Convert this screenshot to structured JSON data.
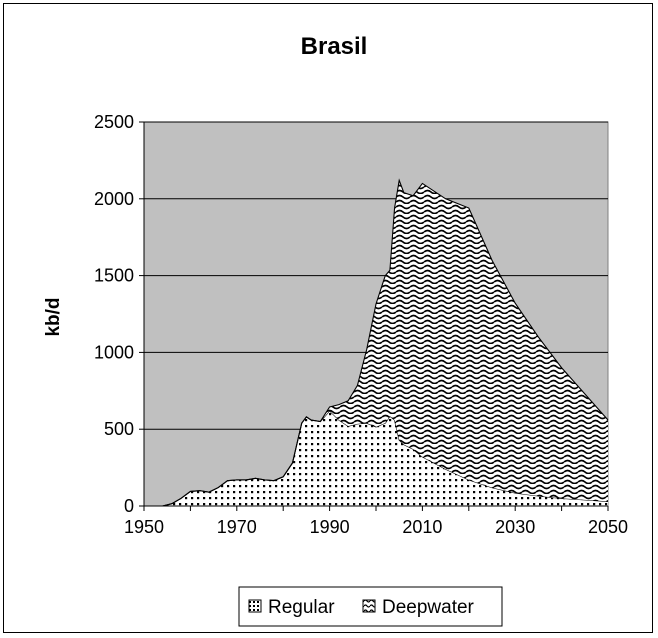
{
  "chart_data": {
    "type": "area",
    "stacked": true,
    "title": "Brasil",
    "xlabel": "",
    "ylabel": "kb/d",
    "xlim": [
      1950,
      2050
    ],
    "ylim": [
      0,
      2500
    ],
    "xticks": [
      1950,
      1970,
      1990,
      2010,
      2030,
      2050
    ],
    "yticks": [
      0,
      500,
      1000,
      1500,
      2000,
      2500
    ],
    "grid": true,
    "legend_position": "bottom",
    "colors": {
      "plot_background": "#c0c0c0",
      "fill": "#ffffff",
      "pattern": "#000000"
    },
    "series": [
      {
        "name": "Regular",
        "pattern": "dots",
        "points": [
          [
            1950,
            0
          ],
          [
            1954,
            0
          ],
          [
            1956,
            15
          ],
          [
            1958,
            50
          ],
          [
            1960,
            95
          ],
          [
            1962,
            100
          ],
          [
            1964,
            90
          ],
          [
            1966,
            120
          ],
          [
            1968,
            165
          ],
          [
            1970,
            170
          ],
          [
            1972,
            170
          ],
          [
            1974,
            180
          ],
          [
            1976,
            170
          ],
          [
            1978,
            165
          ],
          [
            1980,
            190
          ],
          [
            1982,
            280
          ],
          [
            1984,
            540
          ],
          [
            1985,
            580
          ],
          [
            1986,
            560
          ],
          [
            1988,
            550
          ],
          [
            1990,
            620
          ],
          [
            1992,
            560
          ],
          [
            1994,
            520
          ],
          [
            1996,
            535
          ],
          [
            1998,
            540
          ],
          [
            2000,
            515
          ],
          [
            2002,
            540
          ],
          [
            2003,
            585
          ],
          [
            2004,
            560
          ],
          [
            2005,
            430
          ],
          [
            2006,
            400
          ],
          [
            2008,
            370
          ],
          [
            2010,
            320
          ],
          [
            2015,
            240
          ],
          [
            2020,
            170
          ],
          [
            2025,
            120
          ],
          [
            2030,
            85
          ],
          [
            2035,
            65
          ],
          [
            2040,
            50
          ],
          [
            2045,
            40
          ],
          [
            2050,
            30
          ]
        ]
      },
      {
        "name": "Deepwater",
        "pattern": "waves",
        "points": [
          [
            1950,
            0
          ],
          [
            1954,
            0
          ],
          [
            1956,
            0
          ],
          [
            1958,
            0
          ],
          [
            1960,
            0
          ],
          [
            1962,
            0
          ],
          [
            1964,
            0
          ],
          [
            1966,
            0
          ],
          [
            1968,
            0
          ],
          [
            1970,
            0
          ],
          [
            1972,
            0
          ],
          [
            1974,
            0
          ],
          [
            1976,
            0
          ],
          [
            1978,
            0
          ],
          [
            1980,
            0
          ],
          [
            1982,
            0
          ],
          [
            1984,
            0
          ],
          [
            1985,
            0
          ],
          [
            1986,
            0
          ],
          [
            1988,
            0
          ],
          [
            1990,
            25
          ],
          [
            1992,
            100
          ],
          [
            1994,
            165
          ],
          [
            1996,
            250
          ],
          [
            1998,
            480
          ],
          [
            2000,
            800
          ],
          [
            2002,
            960
          ],
          [
            2003,
            950
          ],
          [
            2004,
            1380
          ],
          [
            2005,
            1690
          ],
          [
            2006,
            1640
          ],
          [
            2008,
            1650
          ],
          [
            2010,
            1780
          ],
          [
            2015,
            1760
          ],
          [
            2020,
            1770
          ],
          [
            2025,
            1480
          ],
          [
            2030,
            1235
          ],
          [
            2035,
            1035
          ],
          [
            2040,
            850
          ],
          [
            2045,
            690
          ],
          [
            2050,
            530
          ]
        ]
      }
    ]
  }
}
